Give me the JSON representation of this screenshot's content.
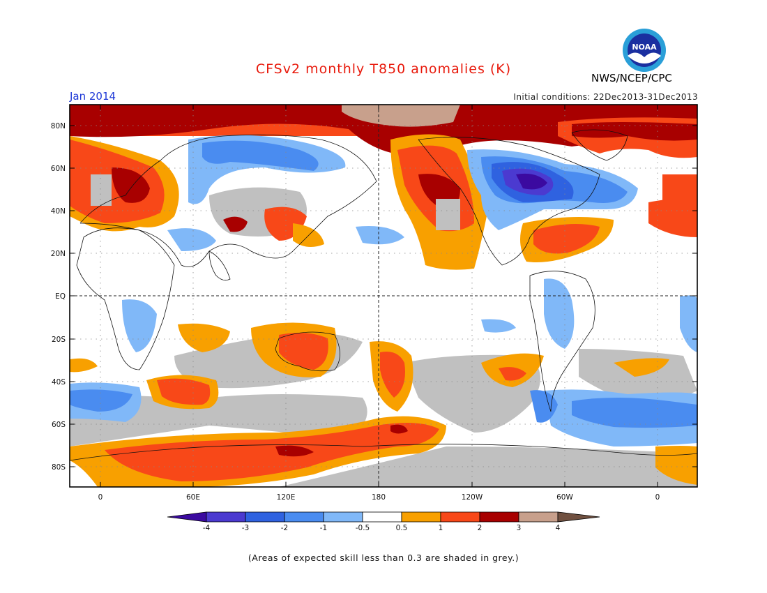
{
  "header": {
    "title": "CFSv2 monthly T850 anomalies (K)",
    "month": "Jan 2014",
    "initial_conditions": "Initial conditions: 22Dec2013-31Dec2013",
    "agency": "NWS/NCEP/CPC",
    "logo_text": "NOAA"
  },
  "map": {
    "lat_labels": [
      "80N",
      "60N",
      "40N",
      "20N",
      "EQ",
      "20S",
      "40S",
      "60S",
      "80S"
    ],
    "lon_labels": [
      "0",
      "60E",
      "120E",
      "180",
      "120W",
      "60W",
      "0"
    ],
    "colors": {
      "below_-4": "#3b0aa0",
      "-4_-3": "#4b3ad0",
      "-3_-2": "#2f62e0",
      "-2_-1": "#4a8cf0",
      "-1_-0.5": "#80b8f8",
      "-0.5_0.5": "#ffffff",
      "0.5_1": "#f8a000",
      "1_2": "#f84818",
      "2_3": "#a80000",
      "3_4": "#c8a08c",
      "above_4": "#705040",
      "low_skill": "#c0c0c0"
    }
  },
  "colorbar": {
    "labels": [
      "-4",
      "-3",
      "-2",
      "-1",
      "-0.5",
      "0.5",
      "1",
      "2",
      "3",
      "4"
    ]
  },
  "footnote": "(Areas of expected skill less than 0.3 are shaded in grey.)"
}
